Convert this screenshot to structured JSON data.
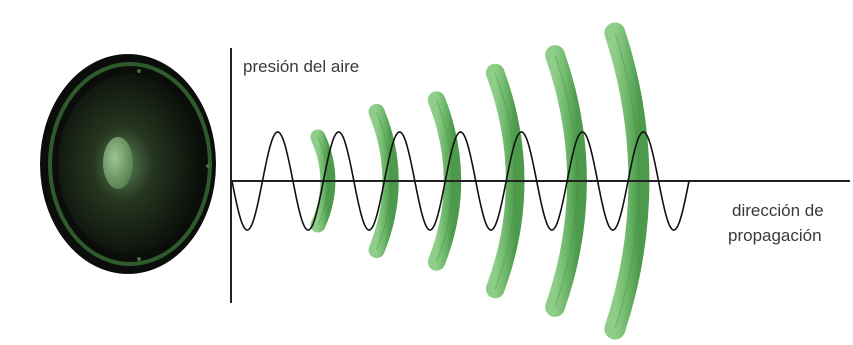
{
  "labels": {
    "y_axis": "presión del aire",
    "x_axis_line1": "dirección de",
    "x_axis_line2": "propagación"
  },
  "wave": {
    "cycles": 7.5,
    "front_count": 6
  },
  "colors": {
    "wave_front": "#6fb86b",
    "wave_front_edge": "#3f8a40",
    "sine": "#111111",
    "axes": "#222222",
    "speaker_body": "#0d0f0d",
    "speaker_rim": "#2f5a2c",
    "speaker_cap": "#6d9a66",
    "label_text": "#3a3a3a"
  },
  "icons": {
    "speaker": "loudspeaker-icon"
  }
}
